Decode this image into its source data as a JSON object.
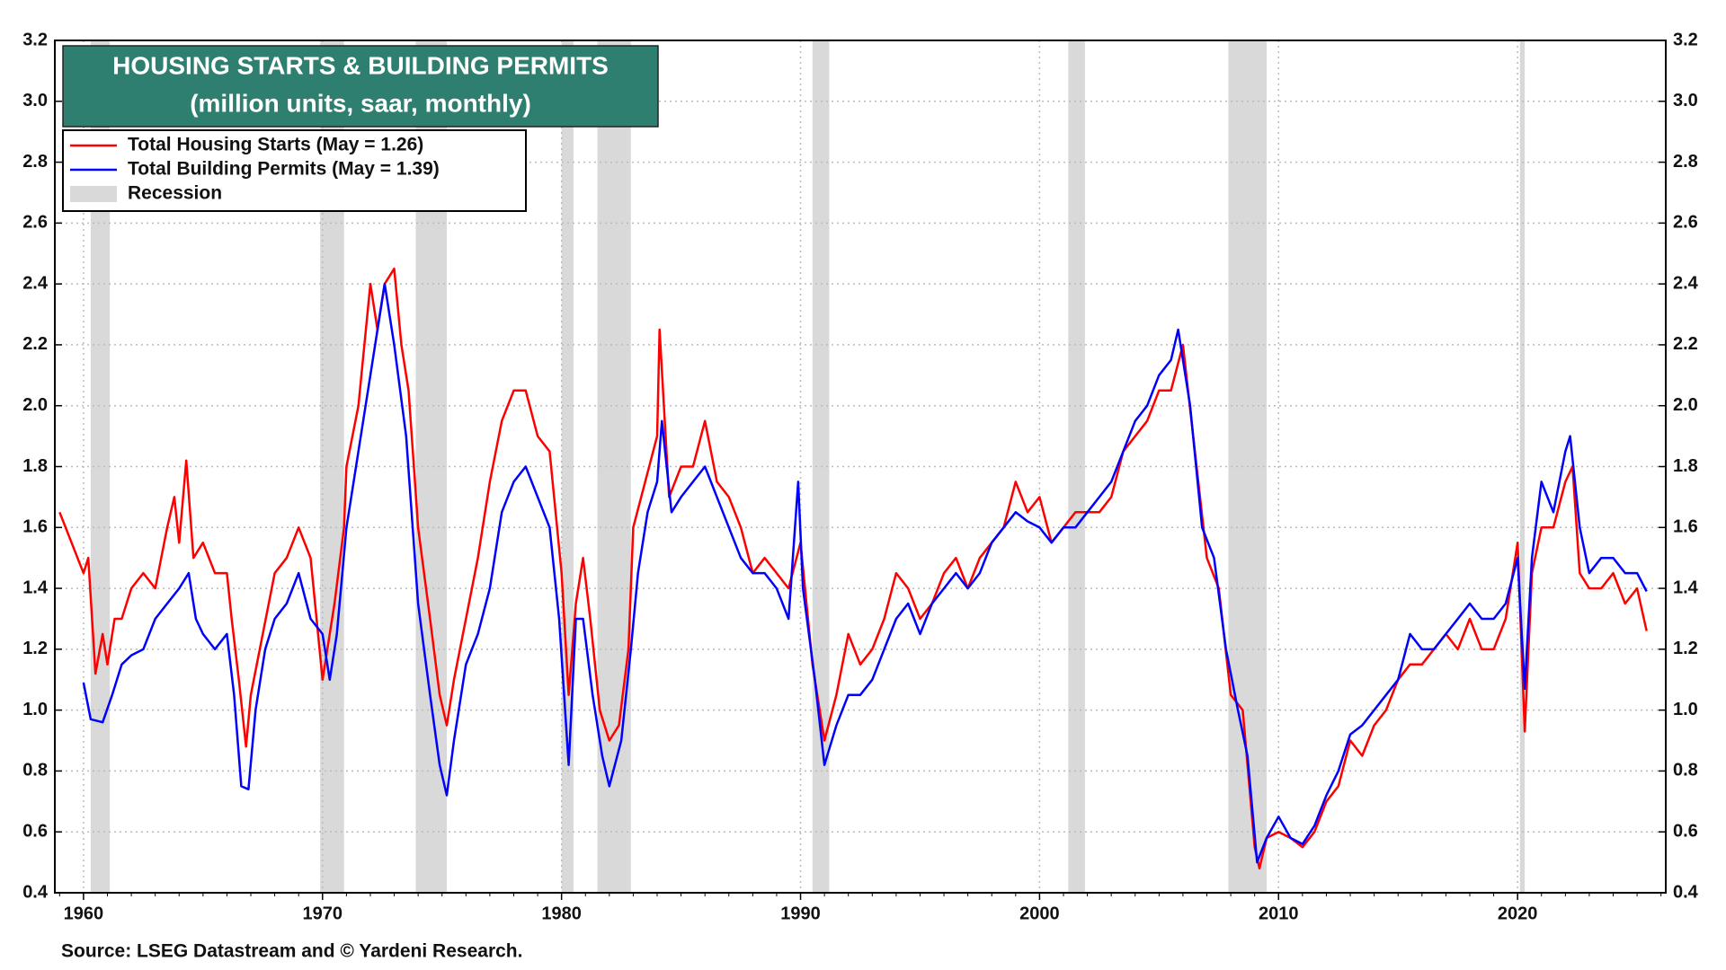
{
  "chart_data": {
    "type": "line",
    "title": "HOUSING STARTS & BUILDING PERMITS",
    "subtitle": "(million units, saar, monthly)",
    "source": "Source: LSEG Datastream and © Yardeni Research.",
    "xlim": [
      1958.8,
      2026.2
    ],
    "xticks": [
      1960,
      1970,
      1980,
      1990,
      2000,
      2010,
      2020
    ],
    "ylim": [
      0.4,
      3.2
    ],
    "yticks": [
      0.4,
      0.6,
      0.8,
      {
        "value": 1,
        "label": "1.0"
      },
      1.2,
      1.4,
      1.6,
      1.8,
      {
        "value": 2,
        "label": "2.0"
      },
      2.2,
      2.4,
      2.6,
      2.8,
      {
        "value": 3,
        "label": "3.0"
      },
      3.2
    ],
    "y2lim": [
      0.4,
      3.2
    ],
    "y2ticks": [
      0.4,
      0.6,
      0.8,
      {
        "value": 1,
        "label": "1.0"
      },
      1.2,
      1.4,
      1.6,
      1.8,
      {
        "value": 2,
        "label": "2.0"
      },
      2.2,
      2.4,
      2.6,
      2.8,
      {
        "value": 3,
        "label": "3.0"
      },
      3.2
    ],
    "grid": true,
    "legend_position": "upper left",
    "recession_label": "Recession",
    "recession_color": "#d9d9d9",
    "recessions": [
      [
        1960.3,
        1961.1
      ],
      [
        1969.9,
        1970.9
      ],
      [
        1973.9,
        1975.2
      ],
      [
        1980.0,
        1980.5
      ],
      [
        1981.5,
        1982.9
      ],
      [
        1990.5,
        1991.2
      ],
      [
        2001.2,
        2001.9
      ],
      [
        2007.9,
        2009.5
      ],
      [
        2020.1,
        2020.3
      ]
    ],
    "series": [
      {
        "name": "Total Housing Starts (May = 1.26)",
        "color": "#ff0000",
        "x": [
          1959.0,
          1959.5,
          1960.0,
          1960.2,
          1960.5,
          1960.8,
          1961.0,
          1961.3,
          1961.6,
          1962.0,
          1962.5,
          1963.0,
          1963.5,
          1963.8,
          1964.0,
          1964.3,
          1964.6,
          1965.0,
          1965.5,
          1966.0,
          1966.2,
          1966.5,
          1966.8,
          1967.0,
          1967.5,
          1968.0,
          1968.5,
          1969.0,
          1969.5,
          1970.0,
          1970.5,
          1970.9,
          1971.0,
          1971.5,
          1972.0,
          1972.3,
          1972.6,
          1973.0,
          1973.3,
          1973.6,
          1974.0,
          1974.5,
          1974.9,
          1975.2,
          1975.5,
          1976.0,
          1976.5,
          1977.0,
          1977.5,
          1978.0,
          1978.5,
          1979.0,
          1979.5,
          1980.0,
          1980.3,
          1980.6,
          1980.9,
          1981.2,
          1981.6,
          1982.0,
          1982.4,
          1982.8,
          1983.0,
          1983.5,
          1984.0,
          1984.1,
          1984.5,
          1985.0,
          1985.5,
          1986.0,
          1986.5,
          1987.0,
          1987.5,
          1988.0,
          1988.5,
          1989.0,
          1989.5,
          1990.0,
          1990.5,
          1991.0,
          1991.5,
          1992.0,
          1992.5,
          1993.0,
          1993.5,
          1994.0,
          1994.5,
          1995.0,
          1995.5,
          1996.0,
          1996.5,
          1997.0,
          1997.5,
          1998.0,
          1998.5,
          1999.0,
          1999.5,
          2000.0,
          2000.5,
          2001.0,
          2001.5,
          2002.0,
          2002.5,
          2003.0,
          2003.5,
          2004.0,
          2004.5,
          2005.0,
          2005.5,
          2006.0,
          2006.5,
          2007.0,
          2007.5,
          2008.0,
          2008.5,
          2009.0,
          2009.2,
          2009.5,
          2010.0,
          2010.5,
          2011.0,
          2011.5,
          2012.0,
          2012.5,
          2013.0,
          2013.5,
          2014.0,
          2014.5,
          2015.0,
          2015.5,
          2016.0,
          2016.5,
          2017.0,
          2017.5,
          2018.0,
          2018.5,
          2019.0,
          2019.5,
          2020.0,
          2020.3,
          2020.6,
          2021.0,
          2021.5,
          2022.0,
          2022.3,
          2022.6,
          2023.0,
          2023.5,
          2024.0,
          2024.5,
          2025.0,
          2025.4
        ],
        "values": [
          1.65,
          1.55,
          1.45,
          1.5,
          1.12,
          1.25,
          1.15,
          1.3,
          1.3,
          1.4,
          1.45,
          1.4,
          1.6,
          1.7,
          1.55,
          1.82,
          1.5,
          1.55,
          1.45,
          1.45,
          1.3,
          1.1,
          0.88,
          1.05,
          1.25,
          1.45,
          1.5,
          1.6,
          1.5,
          1.1,
          1.35,
          1.6,
          1.8,
          2.0,
          2.4,
          2.25,
          2.4,
          2.45,
          2.2,
          2.05,
          1.6,
          1.3,
          1.05,
          0.95,
          1.1,
          1.3,
          1.5,
          1.75,
          1.95,
          2.05,
          2.05,
          1.9,
          1.85,
          1.45,
          1.05,
          1.35,
          1.5,
          1.3,
          1.0,
          0.9,
          0.95,
          1.2,
          1.6,
          1.75,
          1.9,
          2.25,
          1.7,
          1.8,
          1.8,
          1.95,
          1.75,
          1.7,
          1.6,
          1.45,
          1.5,
          1.45,
          1.4,
          1.55,
          1.15,
          0.9,
          1.05,
          1.25,
          1.15,
          1.2,
          1.3,
          1.45,
          1.4,
          1.3,
          1.35,
          1.45,
          1.5,
          1.4,
          1.5,
          1.55,
          1.6,
          1.75,
          1.65,
          1.7,
          1.55,
          1.6,
          1.65,
          1.65,
          1.65,
          1.7,
          1.85,
          1.9,
          1.95,
          2.05,
          2.05,
          2.2,
          1.85,
          1.5,
          1.4,
          1.05,
          1.0,
          0.55,
          0.48,
          0.58,
          0.6,
          0.58,
          0.55,
          0.6,
          0.7,
          0.75,
          0.9,
          0.85,
          0.95,
          1.0,
          1.1,
          1.15,
          1.15,
          1.2,
          1.25,
          1.2,
          1.3,
          1.2,
          1.2,
          1.3,
          1.55,
          0.93,
          1.45,
          1.6,
          1.6,
          1.75,
          1.8,
          1.45,
          1.4,
          1.4,
          1.45,
          1.35,
          1.4,
          1.26
        ]
      },
      {
        "name": "Total Building Permits  (May = 1.39)",
        "color": "#0000ff",
        "x": [
          1960.0,
          1960.3,
          1960.8,
          1961.2,
          1961.6,
          1962.0,
          1962.5,
          1963.0,
          1963.5,
          1964.0,
          1964.4,
          1964.7,
          1965.0,
          1965.5,
          1966.0,
          1966.3,
          1966.6,
          1966.9,
          1967.2,
          1967.6,
          1968.0,
          1968.5,
          1969.0,
          1969.5,
          1970.0,
          1970.3,
          1970.6,
          1971.0,
          1971.5,
          1972.0,
          1972.6,
          1973.0,
          1973.5,
          1974.0,
          1974.5,
          1974.9,
          1975.2,
          1975.5,
          1976.0,
          1976.5,
          1977.0,
          1977.5,
          1978.0,
          1978.5,
          1979.0,
          1979.5,
          1979.9,
          1980.3,
          1980.6,
          1980.9,
          1981.3,
          1981.7,
          1982.0,
          1982.5,
          1982.9,
          1983.2,
          1983.6,
          1984.0,
          1984.2,
          1984.6,
          1985.0,
          1985.5,
          1986.0,
          1986.5,
          1987.0,
          1987.5,
          1988.0,
          1988.5,
          1989.0,
          1989.5,
          1989.9,
          1990.1,
          1990.6,
          1991.0,
          1991.5,
          1992.0,
          1992.5,
          1993.0,
          1993.5,
          1994.0,
          1994.5,
          1995.0,
          1995.5,
          1996.0,
          1996.5,
          1997.0,
          1997.5,
          1998.0,
          1998.5,
          1999.0,
          1999.5,
          2000.0,
          2000.5,
          2001.0,
          2001.5,
          2002.0,
          2002.5,
          2003.0,
          2003.5,
          2004.0,
          2004.5,
          2005.0,
          2005.5,
          2005.8,
          2006.3,
          2006.8,
          2007.3,
          2007.8,
          2008.3,
          2008.7,
          2009.1,
          2009.5,
          2010.0,
          2010.5,
          2011.0,
          2011.5,
          2012.0,
          2012.5,
          2013.0,
          2013.5,
          2014.0,
          2014.5,
          2015.0,
          2015.5,
          2016.0,
          2016.5,
          2017.0,
          2017.5,
          2018.0,
          2018.5,
          2019.0,
          2019.5,
          2020.0,
          2020.3,
          2020.6,
          2021.0,
          2021.5,
          2022.0,
          2022.2,
          2022.6,
          2023.0,
          2023.5,
          2024.0,
          2024.5,
          2025.0,
          2025.4
        ],
        "values": [
          1.09,
          0.97,
          0.96,
          1.05,
          1.15,
          1.18,
          1.2,
          1.3,
          1.35,
          1.4,
          1.45,
          1.3,
          1.25,
          1.2,
          1.25,
          1.05,
          0.75,
          0.74,
          1.0,
          1.2,
          1.3,
          1.35,
          1.45,
          1.3,
          1.25,
          1.1,
          1.25,
          1.6,
          1.85,
          2.1,
          2.4,
          2.2,
          1.9,
          1.35,
          1.05,
          0.82,
          0.72,
          0.9,
          1.15,
          1.25,
          1.4,
          1.65,
          1.75,
          1.8,
          1.7,
          1.6,
          1.3,
          0.82,
          1.3,
          1.3,
          1.05,
          0.85,
          0.75,
          0.9,
          1.2,
          1.45,
          1.65,
          1.75,
          1.95,
          1.65,
          1.7,
          1.75,
          1.8,
          1.7,
          1.6,
          1.5,
          1.45,
          1.45,
          1.4,
          1.3,
          1.75,
          1.4,
          1.1,
          0.82,
          0.95,
          1.05,
          1.05,
          1.1,
          1.2,
          1.3,
          1.35,
          1.25,
          1.35,
          1.4,
          1.45,
          1.4,
          1.45,
          1.55,
          1.6,
          1.65,
          1.62,
          1.6,
          1.55,
          1.6,
          1.6,
          1.65,
          1.7,
          1.75,
          1.85,
          1.95,
          2.0,
          2.1,
          2.15,
          2.25,
          2.0,
          1.6,
          1.5,
          1.2,
          1.0,
          0.85,
          0.5,
          0.58,
          0.65,
          0.58,
          0.56,
          0.62,
          0.72,
          0.8,
          0.92,
          0.95,
          1.0,
          1.05,
          1.1,
          1.25,
          1.2,
          1.2,
          1.25,
          1.3,
          1.35,
          1.3,
          1.3,
          1.35,
          1.5,
          1.07,
          1.5,
          1.75,
          1.65,
          1.85,
          1.9,
          1.6,
          1.45,
          1.5,
          1.5,
          1.45,
          1.45,
          1.39
        ]
      }
    ]
  }
}
